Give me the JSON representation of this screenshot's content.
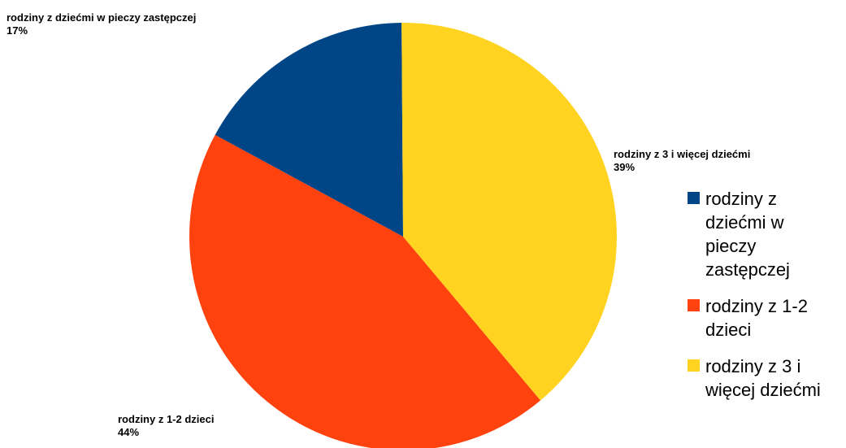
{
  "chart_data": {
    "type": "pie",
    "title": "",
    "slices": [
      {
        "label": "rodziny z 1-2 dzieci",
        "value": 44,
        "percent_label": "44%",
        "color": "#ff420e"
      },
      {
        "label": "rodziny z dziećmi w pieczy zastępczej",
        "value": 17,
        "percent_label": "17%",
        "color": "#004586"
      },
      {
        "label": "rodziny z 3 i więcej dziećmi",
        "value": 39,
        "percent_label": "39%",
        "color": "#ffd320"
      }
    ],
    "legend_position": "right",
    "legend": [
      {
        "label": "rodziny z dziećmi w pieczy zastępczej",
        "color": "#004586"
      },
      {
        "label": "rodziny z 1-2 dzieci",
        "color": "#ff420e"
      },
      {
        "label": "rodziny z 3 i więcej dziećmi",
        "color": "#ffd320"
      }
    ]
  }
}
